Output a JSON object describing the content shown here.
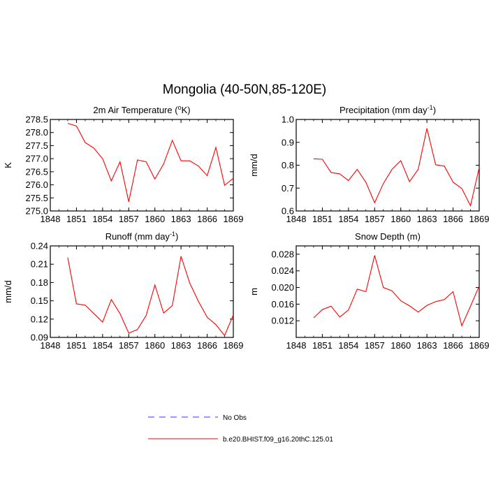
{
  "title": "Mongolia (40-50N,85-120E)",
  "chart_data": [
    {
      "type": "line",
      "title": "2m Air Temperature (",
      "title_sup": "o",
      "title_tail": "K)",
      "ylabel": "K",
      "xlim": [
        1848,
        1869
      ],
      "ylim": [
        275.0,
        278.5
      ],
      "xticks": [
        1848,
        1851,
        1854,
        1857,
        1860,
        1863,
        1866,
        1869
      ],
      "yticks": [
        "275.0",
        "275.5",
        "276.0",
        "276.5",
        "277.0",
        "277.5",
        "278.0",
        "278.5"
      ],
      "x": [
        1850,
        1851,
        1852,
        1853,
        1854,
        1855,
        1856,
        1857,
        1858,
        1859,
        1860,
        1861,
        1862,
        1863,
        1864,
        1865,
        1866,
        1867,
        1868,
        1869
      ],
      "series": [
        {
          "color": "#ff0000",
          "values": [
            278.35,
            278.25,
            277.62,
            277.4,
            277.0,
            276.15,
            276.88,
            275.35,
            276.95,
            276.88,
            276.22,
            276.8,
            277.7,
            276.92,
            276.92,
            276.72,
            276.35,
            277.43,
            275.98,
            276.25
          ]
        }
      ]
    },
    {
      "type": "line",
      "title": "Precipitation (mm day",
      "title_sup": "-1",
      "title_tail": ")",
      "ylabel": "mm/d",
      "xlim": [
        1848,
        1869
      ],
      "ylim": [
        0.6,
        1.0
      ],
      "xticks": [
        1848,
        1851,
        1854,
        1857,
        1860,
        1863,
        1866,
        1869
      ],
      "yticks": [
        "0.6",
        "0.7",
        "0.8",
        "0.9",
        "1.0"
      ],
      "x": [
        1850,
        1851,
        1852,
        1853,
        1854,
        1855,
        1856,
        1857,
        1858,
        1859,
        1860,
        1861,
        1862,
        1863,
        1864,
        1865,
        1866,
        1867,
        1868,
        1869
      ],
      "series": [
        {
          "color": "#ff0000",
          "values": [
            0.828,
            0.826,
            0.768,
            0.762,
            0.733,
            0.782,
            0.725,
            0.636,
            0.72,
            0.782,
            0.82,
            0.728,
            0.782,
            0.961,
            0.802,
            0.796,
            0.726,
            0.698,
            0.623,
            0.79
          ]
        }
      ]
    },
    {
      "type": "line",
      "title": "Runoff (mm day",
      "title_sup": "-1",
      "title_tail": ")",
      "ylabel": "mm/d",
      "xlim": [
        1848,
        1869
      ],
      "ylim": [
        0.09,
        0.24
      ],
      "xticks": [
        1848,
        1851,
        1854,
        1857,
        1860,
        1863,
        1866,
        1869
      ],
      "yticks": [
        "0.09",
        "0.12",
        "0.15",
        "0.18",
        "0.21",
        "0.24"
      ],
      "x": [
        1850,
        1851,
        1852,
        1853,
        1854,
        1855,
        1856,
        1857,
        1858,
        1859,
        1860,
        1861,
        1862,
        1863,
        1864,
        1865,
        1866,
        1867,
        1868,
        1869
      ],
      "series": [
        {
          "color": "#ff0000",
          "values": [
            0.221,
            0.145,
            0.143,
            0.129,
            0.115,
            0.152,
            0.129,
            0.097,
            0.103,
            0.126,
            0.176,
            0.13,
            0.142,
            0.223,
            0.179,
            0.149,
            0.123,
            0.111,
            0.093,
            0.127
          ]
        }
      ]
    },
    {
      "type": "line",
      "title": "Snow Depth (m)",
      "title_sup": "",
      "title_tail": "",
      "ylabel": "m",
      "xlim": [
        1848,
        1869
      ],
      "ylim": [
        0.008,
        0.03
      ],
      "xticks": [
        1848,
        1851,
        1854,
        1857,
        1860,
        1863,
        1866,
        1869
      ],
      "yticks": [
        "0.012",
        "0.016",
        "0.020",
        "0.024",
        "0.028"
      ],
      "x": [
        1850,
        1851,
        1852,
        1853,
        1854,
        1855,
        1856,
        1857,
        1858,
        1859,
        1860,
        1861,
        1862,
        1863,
        1864,
        1865,
        1866,
        1867,
        1868,
        1869
      ],
      "series": [
        {
          "color": "#ff0000",
          "values": [
            0.0127,
            0.0147,
            0.0155,
            0.0129,
            0.0146,
            0.0196,
            0.019,
            0.0277,
            0.02,
            0.0192,
            0.0168,
            0.0156,
            0.0141,
            0.0157,
            0.0166,
            0.0171,
            0.019,
            0.0108,
            0.0155,
            0.0204
          ]
        }
      ]
    }
  ],
  "legend": [
    {
      "label": "No Obs",
      "color": "#3333ff",
      "dashed": true
    },
    {
      "label": "b.e20.BHIST.f09_g16.20thC.125.01",
      "color": "#ff0000",
      "dashed": false
    }
  ]
}
